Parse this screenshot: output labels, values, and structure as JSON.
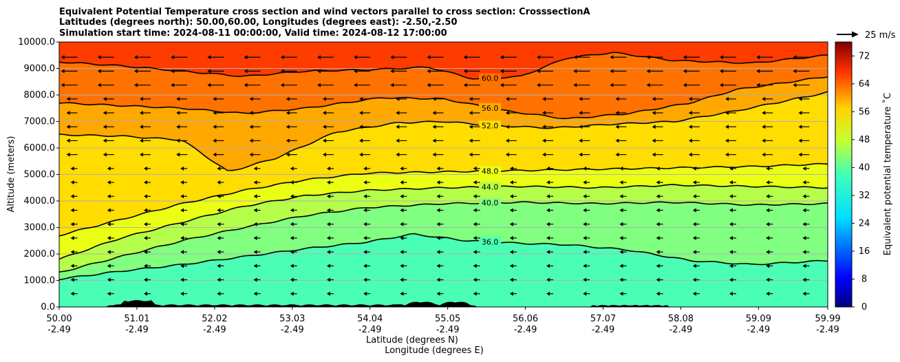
{
  "chart_data": {
    "type": "heatmap",
    "title_lines": [
      "Equivalent Potential Temperature cross section and wind vectors parallel to cross section: CrosssectionA",
      "Latitudes (degrees north): 50.00,60.00, Longitudes (degrees east): -2.50,-2.50",
      "Simulation start time: 2024-08-11 00:00:00, Valid time: 2024-08-12 17:00:00"
    ],
    "xlabel_lines": [
      "Latitude (degrees N)",
      "Longitude (degrees E)"
    ],
    "ylabel": "Altitude (meters)",
    "x_range": [
      50.0,
      59.99
    ],
    "y_range": [
      0,
      10000
    ],
    "x_ticks": [
      {
        "lat": "50.00",
        "lon": "-2.49",
        "value": 50.0
      },
      {
        "lat": "51.01",
        "lon": "-2.49",
        "value": 51.01
      },
      {
        "lat": "52.02",
        "lon": "-2.49",
        "value": 52.02
      },
      {
        "lat": "53.03",
        "lon": "-2.49",
        "value": 53.03
      },
      {
        "lat": "54.04",
        "lon": "-2.49",
        "value": 54.04
      },
      {
        "lat": "55.05",
        "lon": "-2.49",
        "value": 55.05
      },
      {
        "lat": "56.06",
        "lon": "-2.49",
        "value": 56.06
      },
      {
        "lat": "57.07",
        "lon": "-2.49",
        "value": 57.07
      },
      {
        "lat": "58.08",
        "lon": "-2.49",
        "value": 58.08
      },
      {
        "lat": "59.09",
        "lon": "-2.49",
        "value": 59.09
      },
      {
        "lat": "59.99",
        "lon": "-2.49",
        "value": 59.99
      }
    ],
    "y_ticks": [
      {
        "label": "0.0",
        "value": 0
      },
      {
        "label": "1000.0",
        "value": 1000
      },
      {
        "label": "2000.0",
        "value": 2000
      },
      {
        "label": "3000.0",
        "value": 3000
      },
      {
        "label": "4000.0",
        "value": 4000
      },
      {
        "label": "5000.0",
        "value": 5000
      },
      {
        "label": "6000.0",
        "value": 6000
      },
      {
        "label": "7000.0",
        "value": 7000
      },
      {
        "label": "8000.0",
        "value": 8000
      },
      {
        "label": "9000.0",
        "value": 9000
      },
      {
        "label": "10000.0",
        "value": 10000
      }
    ],
    "grid": "horizontal",
    "colorbar": {
      "label": "Equivalent potential temperature $^\\circ$C",
      "label_display": "Equivalent potential temperature ˚C",
      "range": [
        0,
        76
      ],
      "ticks": [
        "0",
        "8",
        "16",
        "24",
        "32",
        "40",
        "48",
        "56",
        "64",
        "72"
      ],
      "tick_values": [
        0,
        8,
        16,
        24,
        32,
        40,
        48,
        56,
        64,
        72
      ],
      "colormap": "jet"
    },
    "quiver_key": "25 m/s",
    "contour_levels": [
      {
        "value": 36,
        "label": "36.0",
        "alt_profile": [
          [
            50.0,
            1050
          ],
          [
            50.8,
            1350
          ],
          [
            51.6,
            1600
          ],
          [
            52.4,
            1900
          ],
          [
            53.2,
            2200
          ],
          [
            54.0,
            2450
          ],
          [
            54.6,
            2750
          ],
          [
            55.3,
            2500
          ],
          [
            56.0,
            2400
          ],
          [
            56.6,
            2350
          ],
          [
            57.4,
            2150
          ],
          [
            58.2,
            1750
          ],
          [
            59.0,
            1600
          ],
          [
            59.99,
            1750
          ]
        ]
      },
      {
        "value": 40,
        "label": "40.0",
        "alt_profile": [
          [
            50.0,
            1300
          ],
          [
            50.8,
            1900
          ],
          [
            51.6,
            2500
          ],
          [
            52.4,
            3000
          ],
          [
            53.2,
            3450
          ],
          [
            54.0,
            3750
          ],
          [
            55.0,
            3900
          ],
          [
            56.0,
            3950
          ],
          [
            57.0,
            3900
          ],
          [
            58.0,
            3950
          ],
          [
            59.0,
            3850
          ],
          [
            59.99,
            3900
          ]
        ]
      },
      {
        "value": 44,
        "label": "44.0",
        "alt_profile": [
          [
            50.0,
            1800
          ],
          [
            50.8,
            2600
          ],
          [
            51.6,
            3200
          ],
          [
            52.4,
            3800
          ],
          [
            53.2,
            4200
          ],
          [
            54.0,
            4400
          ],
          [
            55.0,
            4500
          ],
          [
            56.0,
            4550
          ],
          [
            57.0,
            4500
          ],
          [
            58.0,
            4600
          ],
          [
            59.0,
            4550
          ],
          [
            59.99,
            4500
          ]
        ]
      },
      {
        "value": 48,
        "label": "48.0",
        "alt_profile": [
          [
            50.0,
            2700
          ],
          [
            50.8,
            3300
          ],
          [
            51.6,
            3900
          ],
          [
            52.4,
            4400
          ],
          [
            53.2,
            4800
          ],
          [
            54.0,
            5050
          ],
          [
            55.0,
            5100
          ],
          [
            56.0,
            5150
          ],
          [
            57.0,
            5200
          ],
          [
            58.0,
            5250
          ],
          [
            59.0,
            5300
          ],
          [
            59.99,
            5400
          ]
        ]
      },
      {
        "value": 52,
        "label": "52.0",
        "alt_profile": [
          [
            50.0,
            6500
          ],
          [
            50.8,
            6450
          ],
          [
            51.6,
            6300
          ],
          [
            52.2,
            5100
          ],
          [
            52.8,
            5600
          ],
          [
            53.6,
            6600
          ],
          [
            54.4,
            6950
          ],
          [
            55.0,
            7000
          ],
          [
            55.6,
            6850
          ],
          [
            56.4,
            6750
          ],
          [
            57.2,
            6900
          ],
          [
            58.0,
            7000
          ],
          [
            58.8,
            7400
          ],
          [
            59.99,
            8100
          ]
        ]
      },
      {
        "value": 56,
        "label": "56.0",
        "alt_profile": [
          [
            50.0,
            7700
          ],
          [
            50.8,
            7600
          ],
          [
            51.6,
            7500
          ],
          [
            52.4,
            7300
          ],
          [
            53.2,
            7500
          ],
          [
            54.2,
            7900
          ],
          [
            55.0,
            7850
          ],
          [
            55.8,
            7400
          ],
          [
            56.6,
            7100
          ],
          [
            57.4,
            7300
          ],
          [
            58.2,
            7700
          ],
          [
            58.8,
            8200
          ],
          [
            59.99,
            8700
          ]
        ]
      },
      {
        "value": 60,
        "label": "60.0",
        "alt_profile": [
          [
            50.0,
            9250
          ],
          [
            50.8,
            9100
          ],
          [
            51.6,
            8900
          ],
          [
            52.4,
            8700
          ],
          [
            53.2,
            8900
          ],
          [
            54.0,
            8950
          ],
          [
            54.8,
            9050
          ],
          [
            55.4,
            8600
          ],
          [
            56.0,
            8700
          ],
          [
            56.6,
            9400
          ],
          [
            57.2,
            9600
          ],
          [
            58.0,
            9300
          ],
          [
            59.0,
            9200
          ],
          [
            59.99,
            9500
          ]
        ]
      }
    ],
    "wind_vectors": {
      "direction": "toward decreasing latitude (southward) aloft",
      "max_speed_label_ref": "25 m/s"
    }
  }
}
